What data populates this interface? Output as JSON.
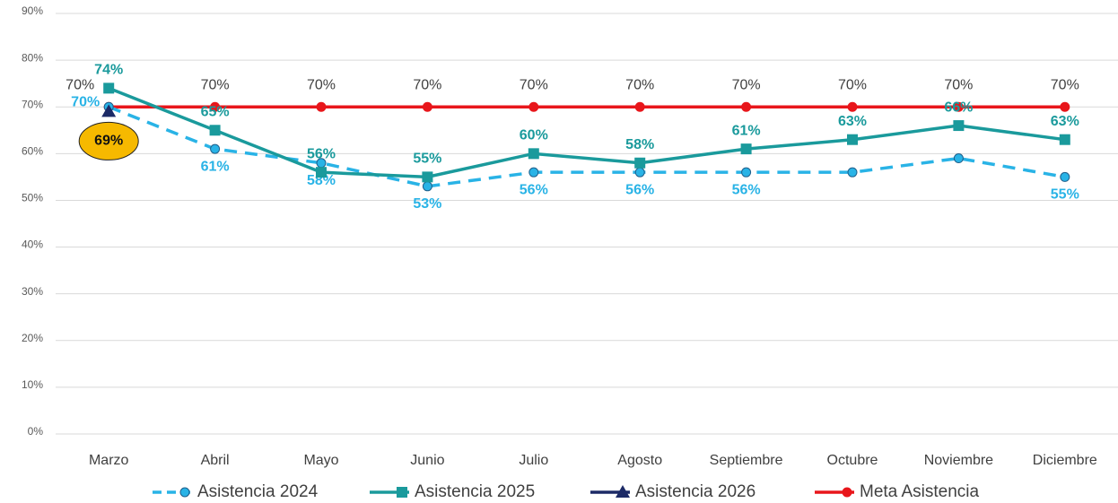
{
  "chart_data": {
    "type": "line",
    "categories": [
      "Marzo",
      "Abril",
      "Mayo",
      "Junio",
      "Julio",
      "Agosto",
      "Septiembre",
      "Octubre",
      "Noviembre",
      "Diciembre"
    ],
    "series": [
      {
        "name": "Asistencia 2024",
        "color": "#29b3e6",
        "dashed": true,
        "marker": "circle",
        "values": [
          70,
          61,
          58,
          53,
          56,
          56,
          56,
          56,
          59,
          55
        ],
        "value_labels": [
          "70%",
          "61%",
          "58%",
          "53%",
          "56%",
          "56%",
          "56%",
          null,
          null,
          "55%"
        ]
      },
      {
        "name": "Asistencia 2025",
        "color": "#1a9a9c",
        "dashed": false,
        "marker": "square",
        "values": [
          74,
          65,
          56,
          55,
          60,
          58,
          61,
          63,
          66,
          63
        ],
        "value_labels": [
          "74%",
          "65%",
          "56%",
          "55%",
          "60%",
          "58%",
          "61%",
          "63%",
          "66%",
          "63%"
        ]
      },
      {
        "name": "Asistencia 2026",
        "color": "#1c2a66",
        "dashed": false,
        "marker": "triangle",
        "values": [
          69,
          null,
          null,
          null,
          null,
          null,
          null,
          null,
          null,
          null
        ],
        "value_labels": [
          "69%",
          null,
          null,
          null,
          null,
          null,
          null,
          null,
          null,
          null
        ]
      },
      {
        "name": "Meta Asistencia",
        "color": "#e8161b",
        "dashed": false,
        "marker": "circle",
        "values": [
          70,
          70,
          70,
          70,
          70,
          70,
          70,
          70,
          70,
          70
        ],
        "value_labels": [
          "70%",
          "70%",
          "70%",
          "70%",
          "70%",
          "70%",
          "70%",
          "70%",
          "70%",
          "70%"
        ]
      }
    ],
    "ylim": [
      0,
      90
    ],
    "yticks": [
      {
        "value": 0,
        "label": "0%"
      },
      {
        "value": 10,
        "label": "10%"
      },
      {
        "value": 20,
        "label": "20%"
      },
      {
        "value": 30,
        "label": "30%"
      },
      {
        "value": 40,
        "label": "40%"
      },
      {
        "value": 50,
        "label": "50%"
      },
      {
        "value": 60,
        "label": "60%"
      },
      {
        "value": 70,
        "label": "70%"
      },
      {
        "value": 80,
        "label": "80%"
      },
      {
        "value": 90,
        "label": "90%"
      }
    ],
    "grid": true
  }
}
